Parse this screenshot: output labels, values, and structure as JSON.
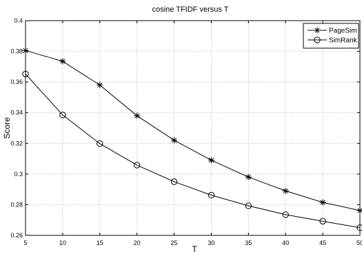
{
  "chart_data": {
    "type": "line",
    "title": "cosine TFIDF versus T",
    "xlabel": "T",
    "ylabel": "Score",
    "x": [
      5,
      10,
      15,
      20,
      25,
      30,
      35,
      40,
      45,
      50
    ],
    "xticks": [
      "5",
      "10",
      "15",
      "20",
      "25",
      "30",
      "35",
      "40",
      "45",
      "50"
    ],
    "yticks": [
      "0.26",
      "0.28",
      "0.3",
      "0.32",
      "0.34",
      "0.36",
      "0.38",
      "0.4"
    ],
    "xlim": [
      5,
      50
    ],
    "ylim": [
      0.26,
      0.4
    ],
    "grid": true,
    "legend_position": "top-right",
    "series": [
      {
        "name": "PageSim",
        "marker": "asterisk",
        "values": [
          0.3805,
          0.3735,
          0.358,
          0.338,
          0.322,
          0.309,
          0.298,
          0.289,
          0.2815,
          0.2762
        ]
      },
      {
        "name": "SimRank",
        "marker": "circle",
        "values": [
          0.3652,
          0.3385,
          0.3198,
          0.3058,
          0.295,
          0.2862,
          0.2793,
          0.2735,
          0.2692,
          0.265
        ]
      }
    ]
  }
}
